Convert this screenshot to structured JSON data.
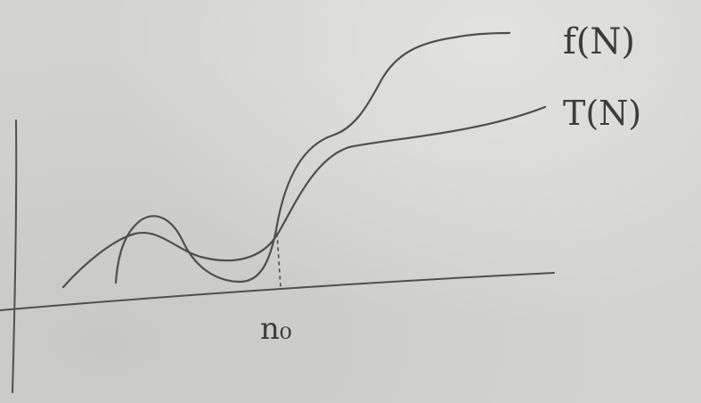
{
  "diagram": {
    "curve_labels": {
      "f": "f(N)",
      "t": "T(N)"
    },
    "x_marker_label": "n₀"
  },
  "colors": {
    "paper": "#d3d3d1",
    "ink": "#4f4f4f"
  }
}
